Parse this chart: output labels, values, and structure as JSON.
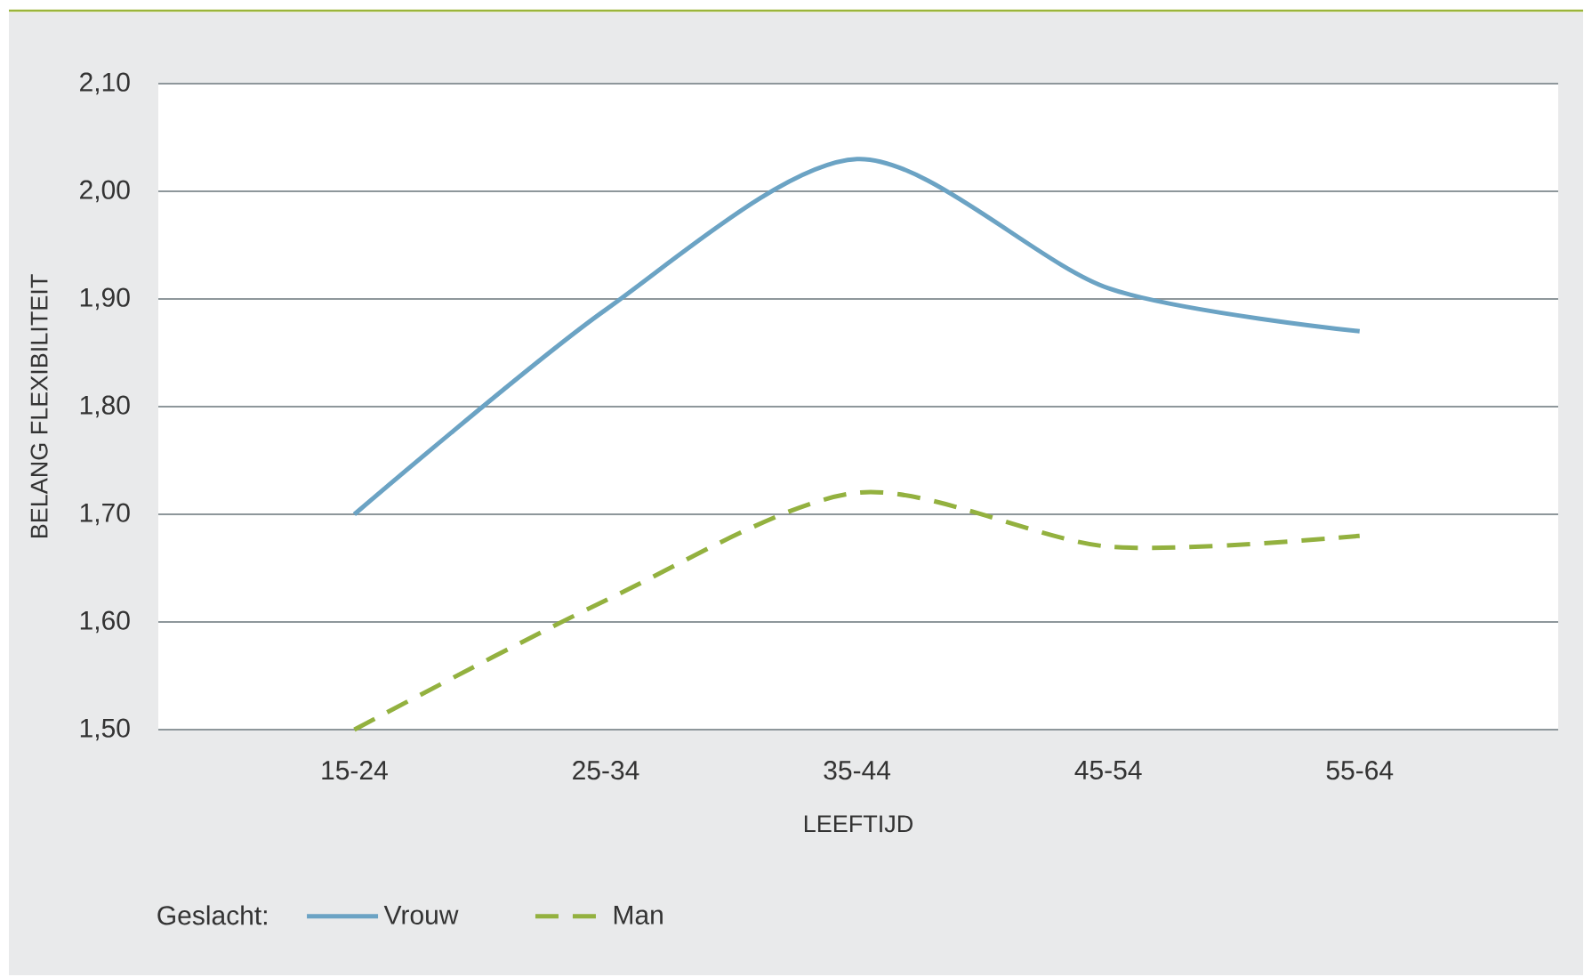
{
  "chart_data": {
    "type": "line",
    "xlabel": "LEEFTIJD",
    "ylabel": "BELANG FLEXIBILITEIT",
    "legend_title": "Geslacht:",
    "categories": [
      "15-24",
      "25-34",
      "35-44",
      "45-54",
      "55-64"
    ],
    "series": [
      {
        "name": "Vrouw",
        "color": "#6ba3c4",
        "line_style": "solid",
        "values": [
          1.7,
          1.89,
          2.03,
          1.91,
          1.87
        ]
      },
      {
        "name": "Man",
        "color": "#93b13f",
        "line_style": "dashed",
        "values": [
          1.5,
          1.62,
          1.72,
          1.67,
          1.68
        ]
      }
    ],
    "ylim": [
      1.5,
      2.1
    ],
    "yticks": [
      {
        "value": 1.5,
        "label": "1,50"
      },
      {
        "value": 1.6,
        "label": "1,60"
      },
      {
        "value": 1.7,
        "label": "1,70"
      },
      {
        "value": 1.8,
        "label": "1,80"
      },
      {
        "value": 1.9,
        "label": "1,90"
      },
      {
        "value": 2.0,
        "label": "2,00"
      },
      {
        "value": 2.1,
        "label": "2,10"
      }
    ],
    "grid": "y",
    "legend": "bottom",
    "marker": "none"
  }
}
